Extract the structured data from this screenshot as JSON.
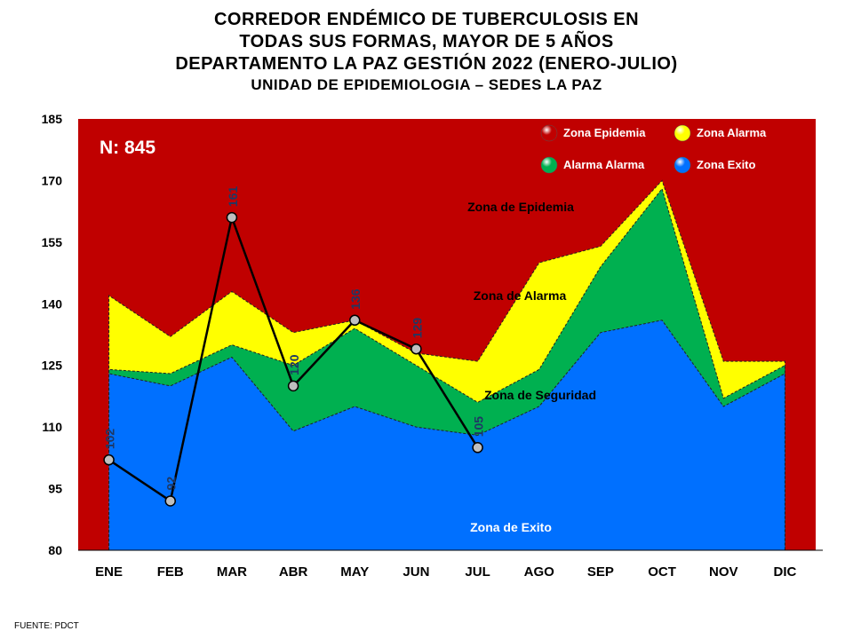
{
  "title_lines": [
    "CORREDOR ENDÉMICO DE TUBERCULOSIS EN",
    "TODAS SUS FORMAS, MAYOR DE 5 AÑOS",
    "DEPARTAMENTO  LA PAZ GESTIÓN 2022 (ENERO-JULIO)"
  ],
  "subtitle": "UNIDAD DE EPIDEMIOLOGIA – SEDES LA PAZ",
  "source": "FUENTE:   PDCT",
  "n_label": "N: 845",
  "colors": {
    "epidemia": "#c00000",
    "alarma": "#ffff00",
    "seguridad": "#00b050",
    "exito": "#0070ff",
    "line": "#000000",
    "marker": "#bfbfbf",
    "value_label": "#1f3864"
  },
  "chart_data": {
    "type": "area",
    "categories": [
      "ENE",
      "FEB",
      "MAR",
      "ABR",
      "MAY",
      "JUN",
      "JUL",
      "AGO",
      "SEP",
      "OCT",
      "NOV",
      "DIC"
    ],
    "ylim": [
      80,
      185
    ],
    "yticks": [
      80,
      95,
      110,
      125,
      140,
      155,
      170,
      185
    ],
    "series": [
      {
        "name": "Zona Epidemia",
        "zone": "epidemia",
        "values": [
          185,
          185,
          185,
          185,
          185,
          185,
          185,
          185,
          185,
          185,
          185,
          185
        ]
      },
      {
        "name": "Zona  Alarma",
        "zone": "alarma",
        "values": [
          142,
          132,
          143,
          133,
          136,
          128,
          126,
          150,
          154,
          170,
          126,
          126
        ]
      },
      {
        "name": "Alarma  Alarma",
        "zone": "seguridad",
        "values": [
          124,
          123,
          130,
          125,
          134,
          125,
          116,
          124,
          149,
          168,
          117,
          125
        ]
      },
      {
        "name": "Zona Exito",
        "zone": "exito",
        "values": [
          123,
          120,
          127,
          109,
          115,
          110,
          108,
          115,
          133,
          136,
          115,
          123
        ]
      }
    ],
    "observed": {
      "categories": [
        "ENE",
        "FEB",
        "MAR",
        "ABR",
        "MAY",
        "JUN",
        "JUL"
      ],
      "values": [
        102,
        92,
        161,
        120,
        136,
        129,
        105
      ]
    },
    "zone_labels": [
      "Zona de Epidemia",
      "Zona de Alarma",
      "Zona de Seguridad",
      "Zona de Exito"
    ]
  }
}
